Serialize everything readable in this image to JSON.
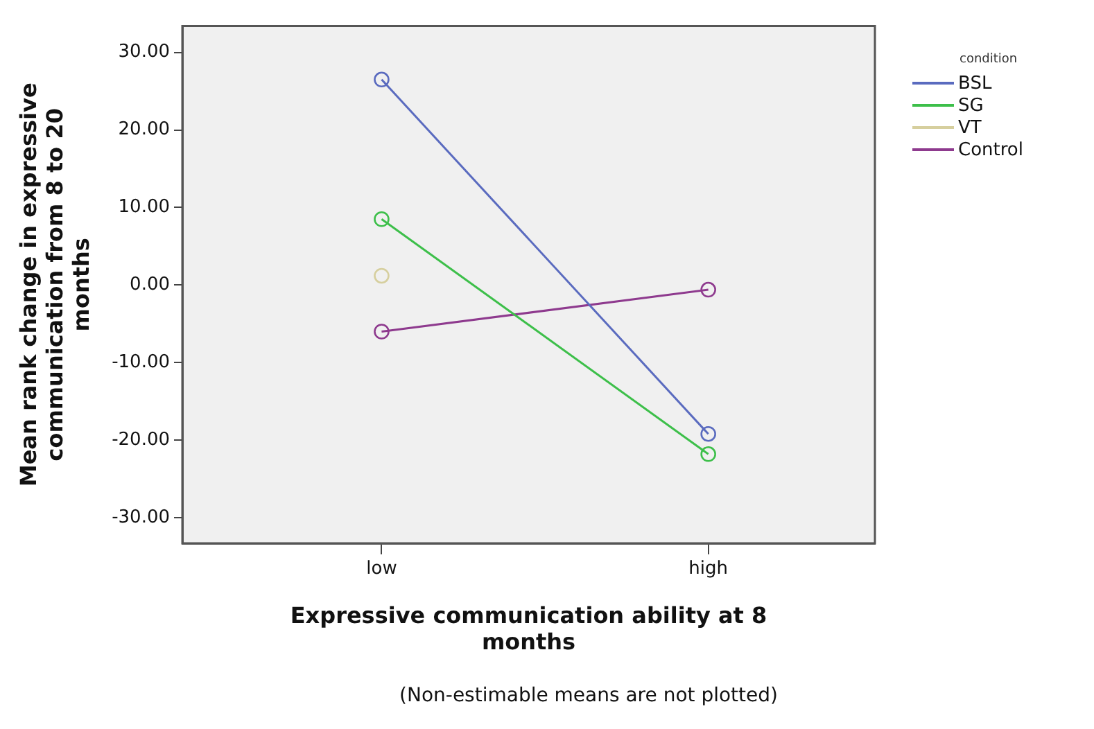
{
  "chart_data": {
    "type": "line",
    "xlabel": "Expressive communication ability at 8 months",
    "ylabel": "Mean rank change in expressive communication from 8 to 20 months",
    "legend_title": "condition",
    "categories": [
      "low",
      "high"
    ],
    "series": [
      {
        "name": "BSL",
        "color": "#5a6bbf",
        "values": [
          26.5,
          -19.2
        ]
      },
      {
        "name": "SG",
        "color": "#3dbf4a",
        "values": [
          8.5,
          -21.8
        ]
      },
      {
        "name": "VT",
        "color": "#d6cf9e",
        "values": [
          1.2,
          null
        ]
      },
      {
        "name": "Control",
        "color": "#8e3a8e",
        "values": [
          -6.0,
          -0.6
        ]
      }
    ],
    "ylim": [
      -33.3,
      33.4
    ],
    "yticks": [
      {
        "value": -30,
        "label": "-30.00"
      },
      {
        "value": -20,
        "label": "-20.00"
      },
      {
        "value": -10,
        "label": "-10.00"
      },
      {
        "value": 0,
        "label": "0.00"
      },
      {
        "value": 10,
        "label": "10.00"
      },
      {
        "value": 20,
        "label": "20.00"
      },
      {
        "value": 30,
        "label": "30.00"
      }
    ],
    "grid": false,
    "legend": "top right",
    "marker": "circle",
    "line_style": "solid",
    "annotations": [
      "(Non-estimable means are not plotted)"
    ]
  }
}
